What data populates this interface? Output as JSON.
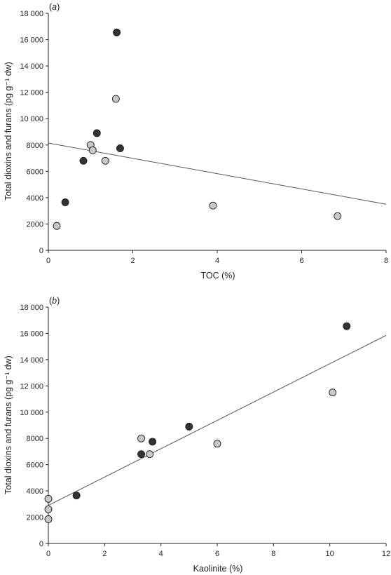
{
  "chart_data": [
    {
      "type": "scatter",
      "panel_label_open": "(",
      "panel_label_letter": "a",
      "panel_label_close": ")",
      "xlabel": "TOC (%)",
      "ylabel": "Total dioxins and furans (pg g⁻¹ dw)",
      "xlim": [
        0,
        8
      ],
      "ylim": [
        0,
        18000
      ],
      "xticks": [
        0,
        2,
        4,
        6,
        8
      ],
      "xtick_labels": [
        "0",
        "2",
        "4",
        "6",
        "8"
      ],
      "yticks": [
        0,
        2000,
        4000,
        6000,
        8000,
        10000,
        12000,
        14000,
        16000,
        18000
      ],
      "ytick_labels": [
        "0",
        "2000",
        "4000",
        "6000",
        "8000",
        "10 000",
        "12 000",
        "14 000",
        "16 000",
        "18 000"
      ],
      "grid": false,
      "series": [
        {
          "marker_color": "#333333",
          "points": [
            [
              0.4,
              3650
            ],
            [
              0.83,
              6800
            ],
            [
              1.15,
              8900
            ],
            [
              1.62,
              16550
            ],
            [
              1.7,
              7750
            ]
          ]
        },
        {
          "marker_color": "#c8c8c8",
          "points": [
            [
              0.2,
              1850
            ],
            [
              1.0,
              8000
            ],
            [
              1.05,
              7600
            ],
            [
              1.35,
              6800
            ],
            [
              1.6,
              11500
            ],
            [
              3.9,
              3400
            ],
            [
              6.85,
              2600
            ]
          ]
        }
      ],
      "trend_line": [
        [
          0,
          8150
        ],
        [
          8,
          3500
        ]
      ]
    },
    {
      "type": "scatter",
      "panel_label_open": "(",
      "panel_label_letter": "b",
      "panel_label_close": ")",
      "xlabel": "Kaolinite (%)",
      "ylabel": "Total dioxins and furans (pg g⁻¹ dw)",
      "xlim": [
        0,
        12
      ],
      "ylim": [
        0,
        18000
      ],
      "xticks": [
        0,
        2,
        4,
        6,
        8,
        10,
        12
      ],
      "xtick_labels": [
        "0",
        "2",
        "4",
        "6",
        "8",
        "10",
        "12"
      ],
      "yticks": [
        0,
        2000,
        4000,
        6000,
        8000,
        10000,
        12000,
        14000,
        16000,
        18000
      ],
      "ytick_labels": [
        "0",
        "2000",
        "4000",
        "6000",
        "8000",
        "10 000",
        "12 000",
        "14 000",
        "16 000",
        "18 000"
      ],
      "grid": false,
      "series": [
        {
          "marker_color": "#333333",
          "points": [
            [
              1.0,
              3650
            ],
            [
              3.3,
              6800
            ],
            [
              3.7,
              7750
            ],
            [
              5.0,
              8900
            ],
            [
              10.6,
              16550
            ]
          ]
        },
        {
          "marker_color": "#c8c8c8",
          "points": [
            [
              0.0,
              1850
            ],
            [
              0.0,
              2600
            ],
            [
              0.0,
              3400
            ],
            [
              3.3,
              8000
            ],
            [
              3.6,
              6800
            ],
            [
              6.0,
              7600
            ],
            [
              10.1,
              11500
            ]
          ]
        }
      ],
      "trend_line": [
        [
          0,
          2900
        ],
        [
          12,
          15850
        ]
      ]
    }
  ]
}
